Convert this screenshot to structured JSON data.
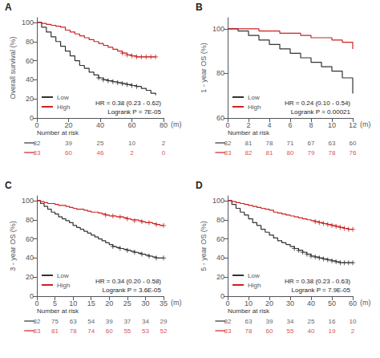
{
  "chart_data": [
    {
      "type": "step",
      "title": "A",
      "ylabel": "Overall survival (%)",
      "xlabel": "(m)",
      "annotations": [
        "HR = 0.38 (0.23 - 0.62)",
        "Logrank P = 7E-05"
      ],
      "xlim": [
        0,
        80
      ],
      "xticks": [
        0,
        20,
        40,
        60,
        80
      ],
      "ylim": [
        0,
        105
      ],
      "yticks": [
        0,
        20,
        40,
        60,
        80,
        100
      ],
      "grid": false,
      "legend": "lower left",
      "risk_title": "Number at risk",
      "risk_x": [
        0,
        20,
        40,
        60,
        80
      ],
      "series": [
        {
          "name": "Low",
          "color": "#333333",
          "marker": "+",
          "x": [
            0,
            3,
            6,
            9,
            12,
            15,
            18,
            21,
            24,
            27,
            30,
            33,
            36,
            39,
            42,
            45,
            48,
            51,
            54,
            57,
            60,
            63,
            66,
            69,
            72,
            75
          ],
          "values": [
            100,
            95,
            90,
            85,
            80,
            75,
            70,
            65,
            60,
            55,
            52,
            48,
            45,
            42,
            40,
            39,
            38,
            37,
            36,
            35,
            34,
            33,
            31,
            29,
            26,
            24
          ],
          "censor_x": [
            39,
            42,
            45,
            48,
            51,
            54,
            57,
            60,
            63
          ],
          "censor_values": [
            42,
            40,
            39,
            38,
            37,
            36,
            35,
            34,
            33
          ],
          "at_risk": [
            82,
            39,
            25,
            10,
            2
          ]
        },
        {
          "name": "High",
          "color": "#cc2222",
          "marker": "+",
          "x": [
            0,
            3,
            6,
            9,
            12,
            15,
            18,
            21,
            24,
            27,
            30,
            33,
            36,
            39,
            42,
            45,
            48,
            51,
            54,
            57,
            60,
            63,
            66,
            69,
            72,
            75
          ],
          "values": [
            100,
            99,
            98,
            97,
            96,
            95,
            92,
            90,
            88,
            86,
            84,
            82,
            80,
            78,
            76,
            74,
            72,
            70,
            68,
            66,
            65,
            64,
            64,
            64,
            64,
            64
          ],
          "censor_x": [
            54,
            57,
            60,
            63,
            66,
            69,
            72,
            75
          ],
          "censor_values": [
            68,
            66,
            65,
            64,
            64,
            64,
            64,
            64
          ],
          "at_risk": [
            83,
            60,
            46,
            2,
            0
          ]
        }
      ]
    },
    {
      "type": "step",
      "title": "B",
      "ylabel": "1 - year OS (%)",
      "xlabel": "(m)",
      "annotations": [
        "HR = 0.24 (0.10 - 0.54)",
        "Logrank P = 0.00021"
      ],
      "xlim": [
        0,
        12
      ],
      "xticks": [
        0,
        2,
        4,
        6,
        8,
        10,
        12
      ],
      "ylim": [
        60,
        105
      ],
      "yticks": [
        60,
        80,
        100
      ],
      "grid": false,
      "legend": "lower left",
      "risk_title": "Number at risk",
      "risk_x": [
        0,
        2,
        4,
        6,
        8,
        10,
        12
      ],
      "series": [
        {
          "name": "Low",
          "color": "#333333",
          "marker": "+",
          "x": [
            0,
            1,
            2,
            3,
            4,
            5,
            6,
            7,
            8,
            9,
            10,
            11,
            12
          ],
          "values": [
            100,
            99,
            97,
            95,
            93,
            91,
            89,
            87,
            85,
            83,
            81,
            78,
            71
          ],
          "censor_x": [],
          "censor_values": [],
          "at_risk": [
            82,
            81,
            78,
            71,
            67,
            63,
            60
          ]
        },
        {
          "name": "High",
          "color": "#cc2222",
          "marker": "+",
          "x": [
            0,
            1,
            2,
            3,
            4,
            5,
            6,
            7,
            8,
            9,
            10,
            11,
            12
          ],
          "values": [
            100,
            100,
            100,
            99,
            99,
            98,
            98,
            97,
            96,
            96,
            95,
            94,
            91
          ],
          "censor_x": [],
          "censor_values": [],
          "at_risk": [
            83,
            82,
            81,
            80,
            79,
            78,
            76
          ]
        }
      ]
    },
    {
      "type": "step",
      "title": "C",
      "ylabel": "3 - year OS (%)",
      "xlabel": "(m)",
      "annotations": [
        "HR = 0.34 (0.20 - 0.58)",
        "Logrank P = 3.6E-05"
      ],
      "xlim": [
        0,
        35
      ],
      "xticks": [
        0,
        5,
        10,
        15,
        20,
        25,
        30,
        35
      ],
      "ylim": [
        0,
        105
      ],
      "yticks": [
        0,
        20,
        40,
        60,
        80,
        100
      ],
      "grid": false,
      "legend": "lower left",
      "risk_title": "Number at risk",
      "risk_x": [
        0,
        5,
        10,
        15,
        20,
        25,
        30,
        35
      ],
      "series": [
        {
          "name": "Low",
          "color": "#333333",
          "marker": "+",
          "x": [
            0,
            1,
            2,
            3,
            4,
            5,
            6,
            7,
            8,
            9,
            10,
            11,
            12,
            13,
            14,
            15,
            16,
            17,
            18,
            19,
            20,
            21,
            22,
            23,
            24,
            25,
            26,
            27,
            28,
            29,
            30,
            31,
            32,
            33,
            34,
            35
          ],
          "values": [
            100,
            97,
            94,
            91,
            88,
            86,
            83,
            81,
            79,
            77,
            74,
            72,
            70,
            68,
            66,
            64,
            62,
            60,
            58,
            56,
            54,
            52,
            51,
            50,
            49,
            48,
            47,
            46,
            45,
            44,
            43,
            42,
            41,
            40,
            40,
            40
          ],
          "censor_x": [
            21,
            23,
            25,
            27,
            29,
            31,
            33,
            35
          ],
          "censor_values": [
            52,
            50,
            48,
            46,
            44,
            42,
            40,
            40
          ],
          "at_risk": [
            82,
            75,
            63,
            54,
            39,
            37,
            34,
            29
          ]
        },
        {
          "name": "High",
          "color": "#cc2222",
          "marker": "+",
          "x": [
            0,
            1,
            2,
            3,
            4,
            5,
            6,
            7,
            8,
            9,
            10,
            11,
            12,
            13,
            14,
            15,
            16,
            17,
            18,
            19,
            20,
            21,
            22,
            23,
            24,
            25,
            26,
            27,
            28,
            29,
            30,
            31,
            32,
            33,
            34,
            35
          ],
          "values": [
            100,
            99,
            98,
            97,
            97,
            96,
            95,
            95,
            94,
            93,
            92,
            91,
            91,
            90,
            89,
            88,
            88,
            87,
            86,
            85,
            84,
            84,
            83,
            83,
            82,
            81,
            80,
            80,
            79,
            78,
            77,
            77,
            76,
            75,
            74,
            74
          ],
          "censor_x": [
            19,
            21,
            23,
            25,
            27,
            29,
            31,
            33,
            35
          ],
          "censor_values": [
            85,
            84,
            83,
            81,
            79,
            78,
            77,
            75,
            74
          ],
          "at_risk": [
            83,
            81,
            78,
            74,
            60,
            55,
            53,
            52
          ]
        }
      ]
    },
    {
      "type": "step",
      "title": "D",
      "ylabel": "5 - year OS (%)",
      "xlabel": "(m)",
      "annotations": [
        "HR = 0.38 (0.23 - 0.63)",
        "Logrank P = 7.9E-05"
      ],
      "xlim": [
        0,
        60
      ],
      "xticks": [
        0,
        10,
        20,
        30,
        40,
        50,
        60
      ],
      "ylim": [
        0,
        105
      ],
      "yticks": [
        0,
        20,
        40,
        60,
        80,
        100
      ],
      "grid": false,
      "legend": "lower left",
      "risk_title": "Number at risk",
      "risk_x": [
        0,
        10,
        20,
        30,
        40,
        50,
        60
      ],
      "series": [
        {
          "name": "Low",
          "color": "#333333",
          "marker": "+",
          "x": [
            0,
            2,
            4,
            6,
            8,
            10,
            12,
            14,
            16,
            18,
            20,
            22,
            24,
            26,
            28,
            30,
            32,
            34,
            36,
            38,
            40,
            42,
            44,
            46,
            48,
            50,
            52,
            54,
            56,
            58,
            60
          ],
          "values": [
            100,
            96,
            92,
            88,
            85,
            81,
            77,
            74,
            70,
            67,
            64,
            61,
            58,
            56,
            54,
            52,
            50,
            48,
            46,
            44,
            42,
            41,
            40,
            39,
            38,
            37,
            36,
            35,
            35,
            35,
            35
          ],
          "censor_x": [
            32,
            34,
            36,
            38,
            40,
            42,
            44,
            46,
            48,
            50,
            52,
            54,
            56,
            58,
            60
          ],
          "censor_values": [
            50,
            48,
            46,
            44,
            42,
            41,
            40,
            39,
            38,
            37,
            36,
            35,
            35,
            35,
            35
          ],
          "at_risk": [
            82,
            63,
            39,
            34,
            25,
            16,
            10
          ]
        },
        {
          "name": "High",
          "color": "#cc2222",
          "marker": "+",
          "x": [
            0,
            2,
            4,
            6,
            8,
            10,
            12,
            14,
            16,
            18,
            20,
            22,
            24,
            26,
            28,
            30,
            32,
            34,
            36,
            38,
            40,
            42,
            44,
            46,
            48,
            50,
            52,
            54,
            56,
            58,
            60
          ],
          "values": [
            100,
            99,
            98,
            97,
            96,
            95,
            94,
            93,
            92,
            91,
            90,
            88,
            87,
            86,
            85,
            84,
            83,
            82,
            81,
            80,
            79,
            78,
            77,
            76,
            75,
            74,
            73,
            72,
            71,
            70,
            70
          ],
          "censor_x": [
            42,
            44,
            46,
            48,
            50,
            52,
            54,
            56,
            58,
            60
          ],
          "censor_values": [
            78,
            77,
            76,
            75,
            74,
            73,
            72,
            71,
            70,
            70
          ],
          "at_risk": [
            83,
            78,
            60,
            55,
            40,
            19,
            2
          ]
        }
      ]
    }
  ]
}
